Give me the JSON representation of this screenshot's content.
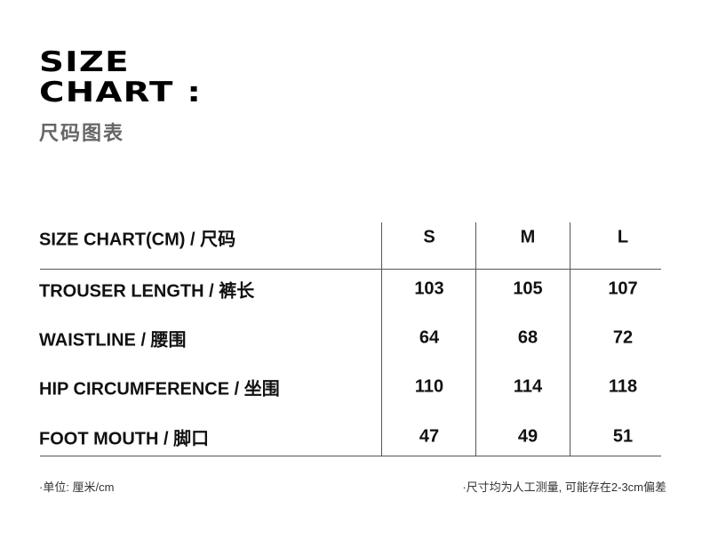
{
  "title_line1": "SIZE",
  "title_line2": "CHART :",
  "subtitle": "尺码图表",
  "table": {
    "header": {
      "label": "SIZE CHART(CM) / 尺码",
      "sizes": [
        "S",
        "M",
        "L"
      ]
    },
    "rows": [
      {
        "label": "TROUSER LENGTH / 裤长",
        "values": [
          "103",
          "105",
          "107"
        ]
      },
      {
        "label": "WAISTLINE / 腰围",
        "values": [
          "64",
          "68",
          "72"
        ]
      },
      {
        "label": "HIP CIRCUMFERENCE / 坐围",
        "values": [
          "110",
          "114",
          "118"
        ]
      },
      {
        "label": "FOOT MOUTH / 脚口",
        "values": [
          "47",
          "49",
          "51"
        ]
      }
    ]
  },
  "notes": {
    "unit": "·单位:  厘米/cm",
    "disclaimer": "·尺寸均为人工测量, 可能存在2-3cm偏差"
  }
}
